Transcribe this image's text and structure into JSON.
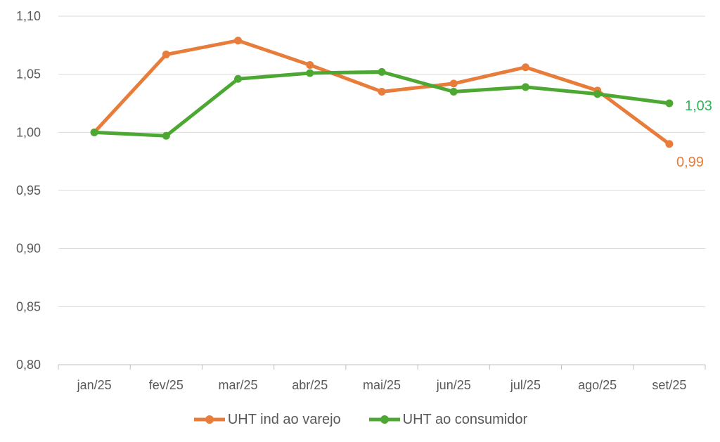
{
  "chart_data": {
    "type": "line",
    "title": "",
    "xlabel": "",
    "ylabel": "",
    "categories": [
      "jan/25",
      "fev/25",
      "mar/25",
      "abr/25",
      "mai/25",
      "jun/25",
      "jul/25",
      "ago/25",
      "set/25"
    ],
    "series": [
      {
        "name": "UHT ind ao varejo",
        "color": "#E87C3A",
        "values": [
          1.0,
          1.067,
          1.079,
          1.058,
          1.035,
          1.042,
          1.056,
          1.036,
          0.99
        ],
        "end_label": "0,99",
        "end_label_color": "#E87C3A"
      },
      {
        "name": "UHT ao consumidor",
        "color": "#4CA832",
        "values": [
          1.0,
          0.997,
          1.046,
          1.051,
          1.052,
          1.035,
          1.039,
          1.033,
          1.025
        ],
        "end_label": "1,03",
        "end_label_color": "#2DB457"
      }
    ],
    "ylim": [
      0.8,
      1.1
    ],
    "yticks": [
      {
        "value": 0.8,
        "label": "0,80"
      },
      {
        "value": 0.85,
        "label": "0,85"
      },
      {
        "value": 0.9,
        "label": "0,90"
      },
      {
        "value": 0.95,
        "label": "0,95"
      },
      {
        "value": 1.0,
        "label": "1,00"
      },
      {
        "value": 1.05,
        "label": "1,05"
      },
      {
        "value": 1.1,
        "label": "1,10"
      }
    ],
    "grid": true,
    "legend_position": "bottom",
    "colors": {
      "gridline": "#D9D9D9",
      "axis_line": "#BFBFBF",
      "axis_text": "#595959",
      "legend_text": "#595959"
    }
  }
}
